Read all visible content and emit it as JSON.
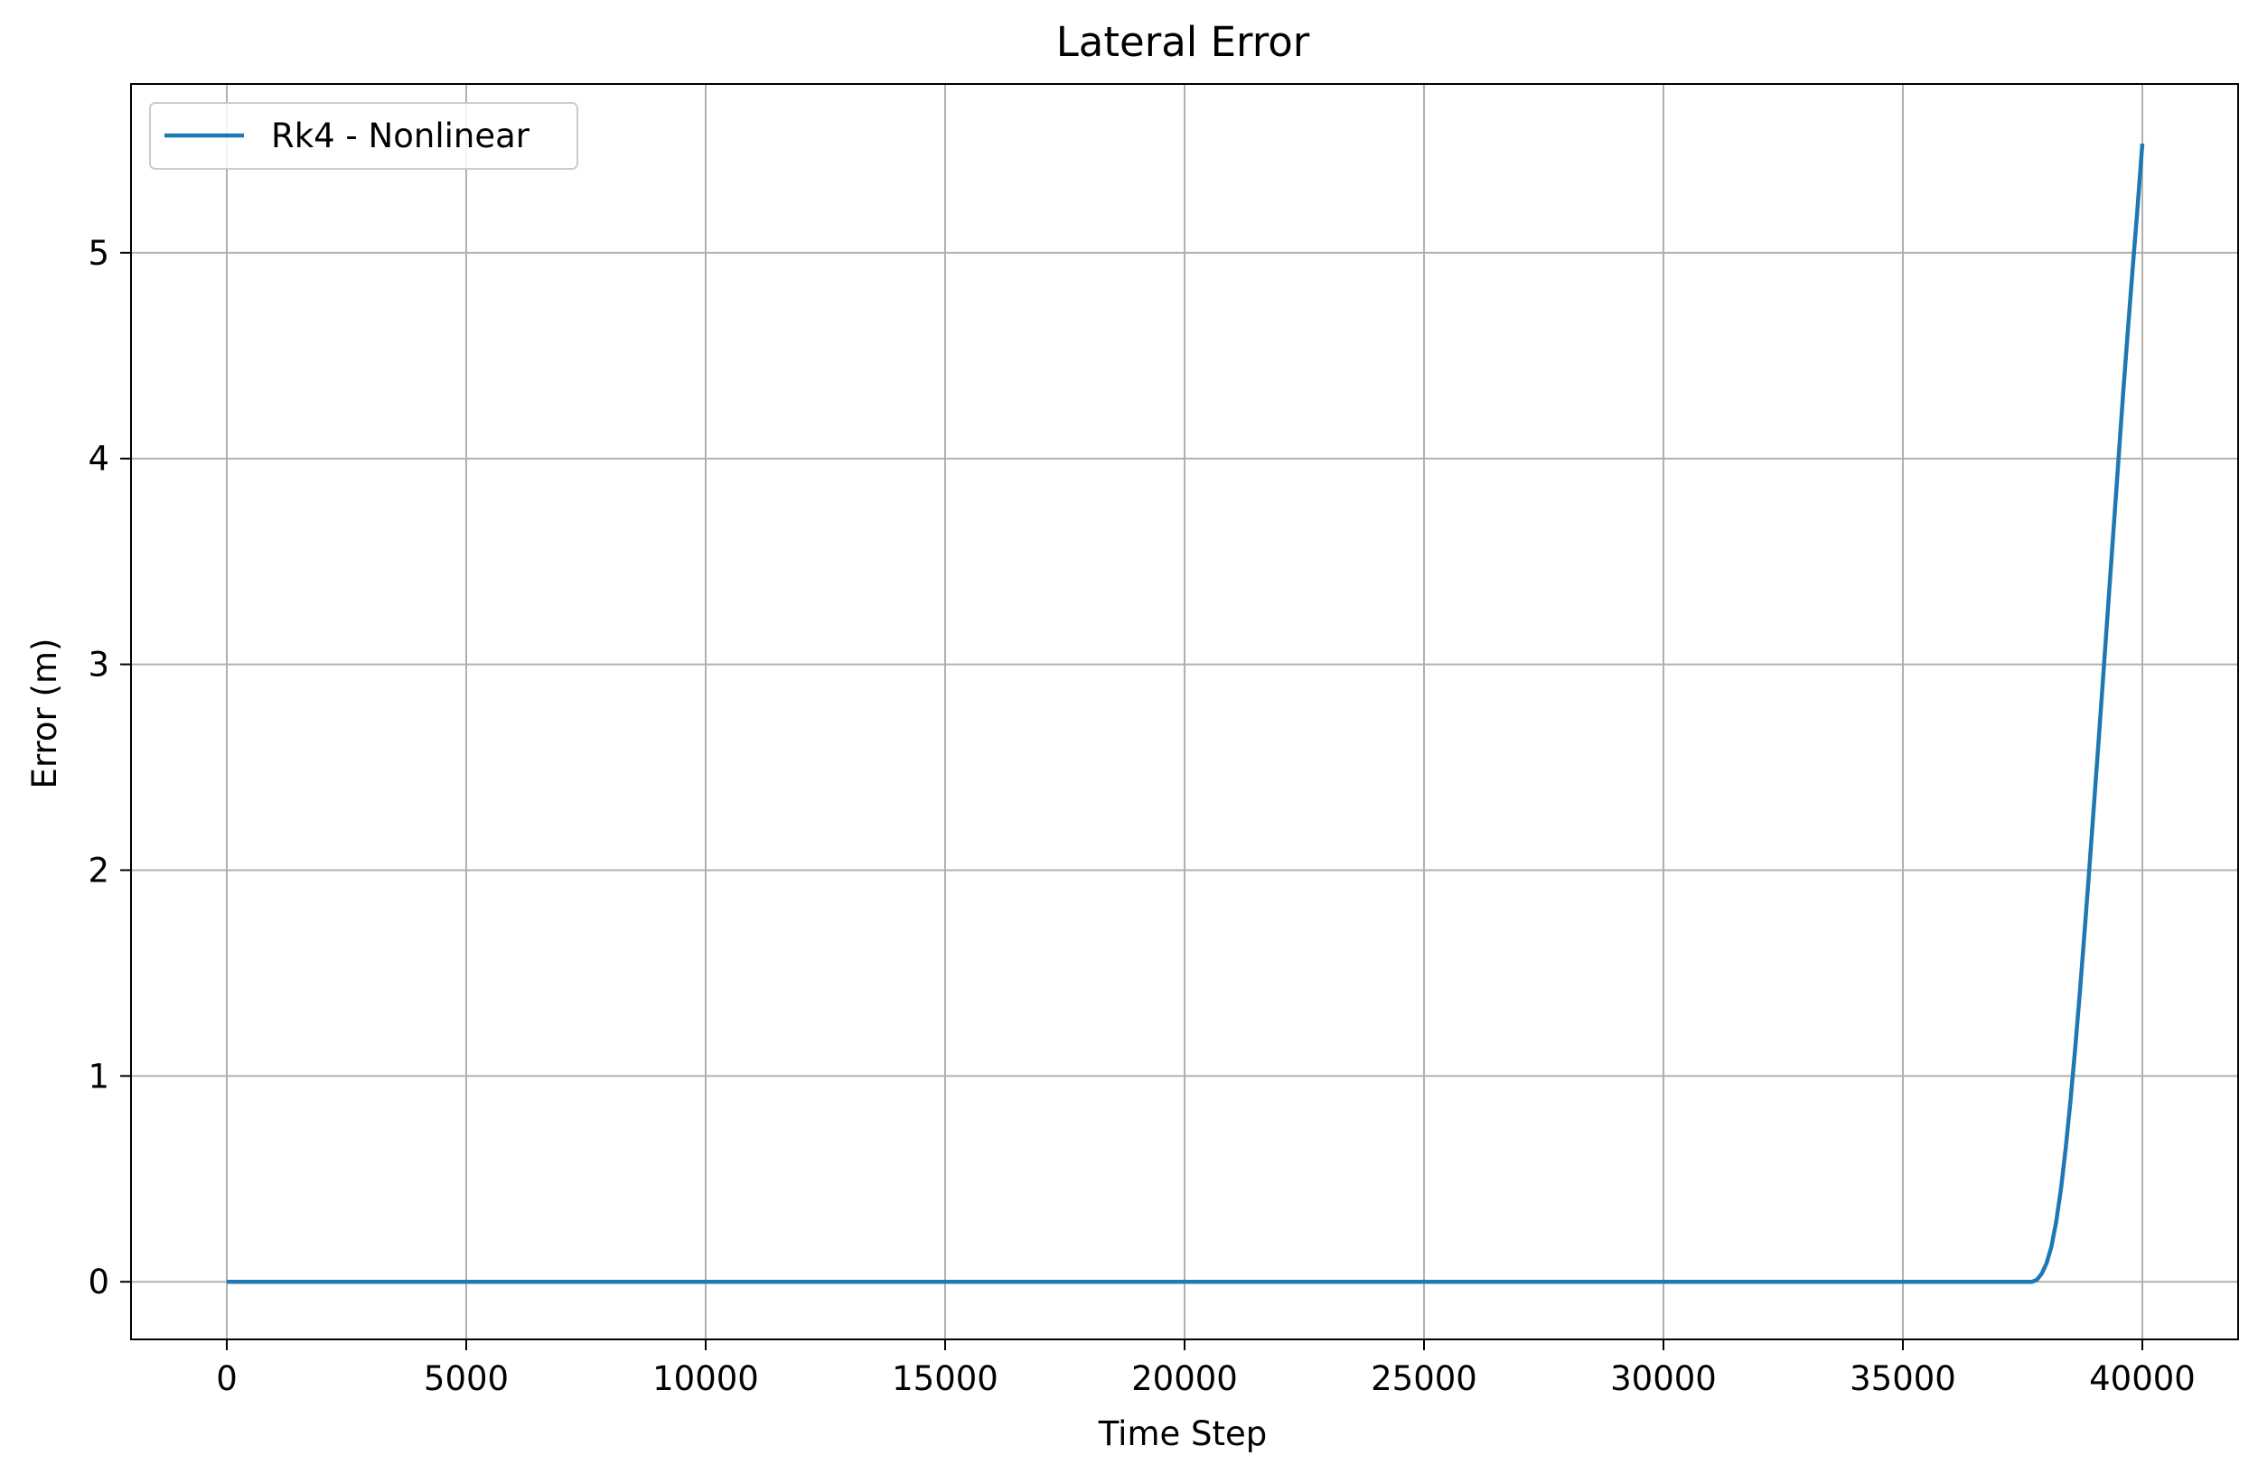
{
  "chart_data": {
    "type": "line",
    "title": "Lateral Error",
    "xlabel": "Time Step",
    "ylabel": "Error (m)",
    "xlim": [
      -2000,
      42000
    ],
    "ylim": [
      -0.28,
      5.82
    ],
    "xticks": [
      0,
      5000,
      10000,
      15000,
      20000,
      25000,
      30000,
      35000,
      40000
    ],
    "yticks": [
      0,
      1,
      2,
      3,
      4,
      5
    ],
    "grid": true,
    "legend_position": "top-left",
    "series": [
      {
        "name": "Rk4 - Nonlinear",
        "color": "#1f77b4",
        "x": [
          0,
          5000,
          10000,
          15000,
          20000,
          25000,
          30000,
          35000,
          37500,
          37700,
          37800,
          37900,
          38000,
          38100,
          38200,
          38300,
          38400,
          38500,
          38600,
          38700,
          38800,
          38900,
          39000,
          39100,
          39200,
          39300,
          39400,
          39500,
          39600,
          39700,
          39800,
          39900,
          40000
        ],
        "y": [
          0,
          0,
          0,
          0,
          0,
          0,
          0,
          0,
          0,
          0.0,
          0.01,
          0.04,
          0.09,
          0.17,
          0.29,
          0.45,
          0.65,
          0.88,
          1.14,
          1.42,
          1.72,
          2.03,
          2.35,
          2.67,
          3.0,
          3.33,
          3.66,
          3.99,
          4.32,
          4.63,
          4.93,
          5.22,
          5.53
        ]
      }
    ]
  }
}
